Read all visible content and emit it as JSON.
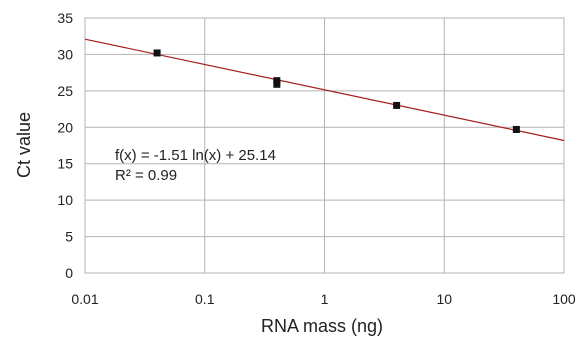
{
  "chart_data": {
    "type": "scatter",
    "title": "",
    "xlabel": "RNA mass (ng)",
    "ylabel": "Ct value",
    "x_scale": "log",
    "xlim": [
      0.01,
      100
    ],
    "ylim": [
      0,
      35
    ],
    "x_ticks": [
      "0.01",
      "0.1",
      "1",
      "10",
      "100"
    ],
    "y_ticks": [
      "0",
      "5",
      "10",
      "15",
      "20",
      "25",
      "30",
      "35"
    ],
    "grid": true,
    "legend": "none",
    "series": [
      {
        "points": [
          {
            "x": 0.04,
            "y": 30.2
          },
          {
            "x": 0.4,
            "y": 26.4
          },
          {
            "x": 0.4,
            "y": 25.9
          },
          {
            "x": 4,
            "y": 23.0
          },
          {
            "x": 40,
            "y": 19.7
          }
        ],
        "color": "#111111"
      }
    ],
    "trendline": {
      "type": "logarithmic",
      "slope": -1.51,
      "intercept": 25.14,
      "color": "#a51d1d"
    },
    "annotations": [
      "f(x) = -1.51 ln(x) + 25.14",
      "R² = 0.99"
    ]
  }
}
